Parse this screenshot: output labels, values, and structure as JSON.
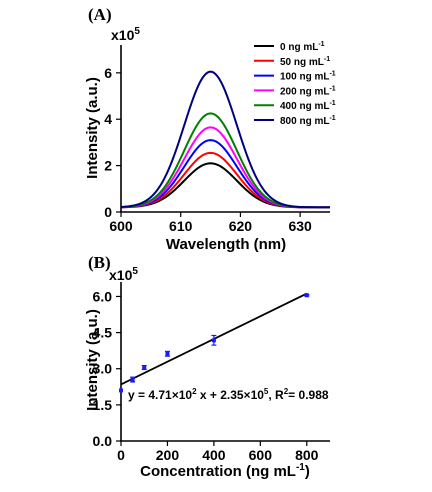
{
  "chart_data": [
    {
      "type": "line",
      "panel_label": "(A)",
      "xlabel": "Wavelength (nm)",
      "ylabel": "Intensity (a.u.)",
      "y_multiplier_label": "x10",
      "y_multiplier_exp": "5",
      "xlim": [
        600,
        635
      ],
      "ylim": [
        0,
        7.2
      ],
      "x_ticks": [
        600,
        610,
        620,
        630
      ],
      "x_tick_labels": [
        "600",
        "610",
        "620",
        "630"
      ],
      "y_ticks": [
        0,
        2,
        4,
        6
      ],
      "y_tick_labels": [
        "0",
        "2",
        "4",
        "6"
      ],
      "legend_position": "top-right",
      "baseline": 0.2,
      "peak_x": 615,
      "series": [
        {
          "name": "0 ng mL",
          "name_sup": "-1",
          "color": "#000000",
          "peak": 2.1
        },
        {
          "name": "50 ng mL",
          "name_sup": "-1",
          "color": "#ff0000",
          "peak": 2.55
        },
        {
          "name": "100 ng mL",
          "name_sup": "-1",
          "color": "#0000ff",
          "peak": 3.1
        },
        {
          "name": "200 ng mL",
          "name_sup": "-1",
          "color": "#ff00ff",
          "peak": 3.65
        },
        {
          "name": "400 ng mL",
          "name_sup": "-1",
          "color": "#008000",
          "peak": 4.25
        },
        {
          "name": "800 ng mL",
          "name_sup": "-1",
          "color": "#000080",
          "peak": 6.05
        }
      ]
    },
    {
      "type": "scatter",
      "panel_label": "(B)",
      "xlabel": "Concentration (ng mL",
      "xlabel_sup": "-1",
      "xlabel_tail": ")",
      "ylabel": "Intensity (a.u.)",
      "y_multiplier_label": "x10",
      "y_multiplier_exp": "5",
      "xlim": [
        0,
        900
      ],
      "ylim": [
        0,
        6.6
      ],
      "x_ticks": [
        0,
        200,
        400,
        600,
        800
      ],
      "x_tick_labels": [
        "0",
        "200",
        "400",
        "600",
        "800"
      ],
      "y_ticks": [
        0,
        1.5,
        3.0,
        4.5,
        6.0
      ],
      "y_tick_labels": [
        "0.0",
        "1.5",
        "3.0",
        "4.5",
        "6.0"
      ],
      "point_color": "#1a1aff",
      "points": [
        {
          "x": 0,
          "y": 2.1,
          "err": 0.0
        },
        {
          "x": 50,
          "y": 2.55,
          "err": 0.1
        },
        {
          "x": 100,
          "y": 3.05,
          "err": 0.08
        },
        {
          "x": 200,
          "y": 3.62,
          "err": 0.1
        },
        {
          "x": 400,
          "y": 4.18,
          "err": 0.2
        },
        {
          "x": 800,
          "y": 6.05,
          "err": 0.03
        }
      ],
      "fit": {
        "slope": 0.00471,
        "intercept": 2.35,
        "x_range": [
          0,
          800
        ]
      },
      "annotation": {
        "part1": "y = 4.71×10",
        "exp1": "2",
        "part2": " x + 2.35×10",
        "exp2": "5",
        "part3": ", R",
        "exp3": "2",
        "part4": "= 0.988"
      }
    }
  ]
}
